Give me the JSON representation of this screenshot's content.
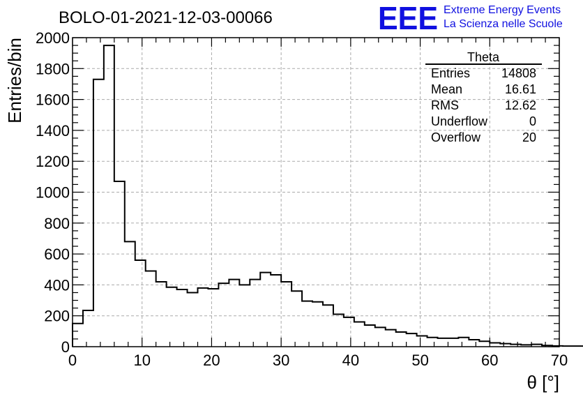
{
  "logo": {
    "mark": "EEE",
    "line1": "Extreme Energy Events",
    "line2": "La Scienza nelle Scuole",
    "color": "#1010e0"
  },
  "stats": {
    "title": "Theta",
    "rows": [
      {
        "label": "Entries",
        "value": "14808"
      },
      {
        "label": "Mean",
        "value": "16.61"
      },
      {
        "label": "RMS",
        "value": "12.62"
      },
      {
        "label": "Underflow",
        "value": "0"
      },
      {
        "label": "Overflow",
        "value": "20"
      }
    ]
  },
  "chart_data": {
    "type": "bar",
    "style": "step-histogram",
    "title": "BOLO-01-2021-12-03-00066",
    "xlabel": "θ [°]",
    "ylabel": "Entries/bin",
    "xlim": [
      0,
      70
    ],
    "ylim": [
      0,
      2000
    ],
    "xticks": [
      0,
      10,
      20,
      30,
      40,
      50,
      60,
      70
    ],
    "yticks": [
      0,
      200,
      400,
      600,
      800,
      1000,
      1200,
      1400,
      1600,
      1800,
      2000
    ],
    "grid": true,
    "bin_width": 1.5,
    "bin_edges_start": 0,
    "values": [
      150,
      235,
      1730,
      1950,
      1070,
      680,
      560,
      490,
      420,
      385,
      370,
      350,
      380,
      375,
      410,
      435,
      400,
      435,
      480,
      465,
      420,
      360,
      295,
      290,
      270,
      210,
      190,
      160,
      140,
      125,
      110,
      95,
      85,
      70,
      60,
      55,
      55,
      60,
      45,
      35,
      25,
      20,
      15,
      12,
      15,
      8,
      5,
      4,
      4,
      3,
      3,
      2,
      2,
      2,
      1,
      1,
      1
    ],
    "line_color": "#000000"
  }
}
